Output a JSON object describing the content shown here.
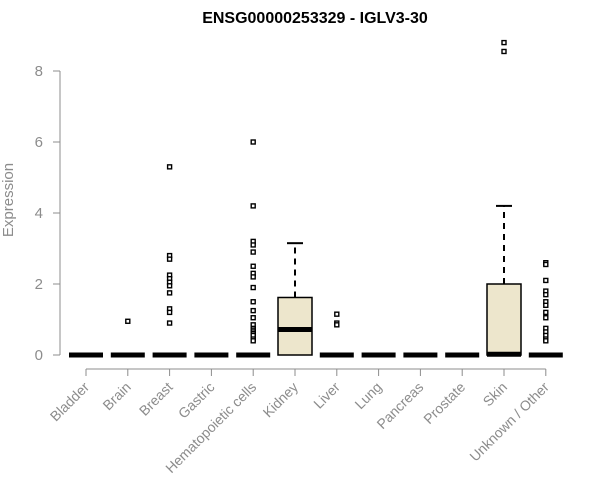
{
  "chart_data": {
    "type": "box",
    "title": "ENSG00000253329 - IGLV3-30",
    "xlabel": "",
    "ylabel": "Expression",
    "ylim": [
      0,
      9
    ],
    "yticks": [
      0,
      2,
      4,
      6,
      8
    ],
    "grid": false,
    "legend": "none",
    "colors": {
      "box_fill": "#ede6cc",
      "axis": "#8c8c8c",
      "title": "#000000"
    },
    "categories": [
      "Bladder",
      "Brain",
      "Breast",
      "Gastric",
      "Hematopoietic cells",
      "Kidney",
      "Liver",
      "Lung",
      "Pancreas",
      "Prostate",
      "Skin",
      "Unknown / Other"
    ],
    "boxes": [
      {
        "category": "Bladder",
        "q1": 0,
        "median": 0,
        "q3": 0,
        "whisker_low": 0,
        "whisker_high": 0,
        "outliers": []
      },
      {
        "category": "Brain",
        "q1": 0,
        "median": 0,
        "q3": 0,
        "whisker_low": 0,
        "whisker_high": 0,
        "outliers": [
          0.95
        ]
      },
      {
        "category": "Breast",
        "q1": 0,
        "median": 0,
        "q3": 0,
        "whisker_low": 0,
        "whisker_high": 0,
        "outliers": [
          5.3,
          2.8,
          2.7,
          2.25,
          2.15,
          2.05,
          1.95,
          1.75,
          1.3,
          1.2,
          0.9
        ]
      },
      {
        "category": "Gastric",
        "q1": 0,
        "median": 0,
        "q3": 0,
        "whisker_low": 0,
        "whisker_high": 0,
        "outliers": []
      },
      {
        "category": "Hematopoietic cells",
        "q1": 0,
        "median": 0,
        "q3": 0,
        "whisker_low": 0,
        "whisker_high": 0,
        "outliers": [
          6.0,
          4.2,
          3.2,
          3.1,
          2.9,
          2.5,
          2.3,
          2.2,
          1.9,
          1.5,
          1.25,
          1.05,
          0.85,
          0.75,
          0.7,
          0.65,
          0.6,
          0.55,
          0.45,
          0.4
        ]
      },
      {
        "category": "Kidney",
        "q1": 0,
        "median": 0.72,
        "q3": 1.62,
        "whisker_low": 0,
        "whisker_high": 3.15,
        "outliers": []
      },
      {
        "category": "Liver",
        "q1": 0,
        "median": 0,
        "q3": 0,
        "whisker_low": 0,
        "whisker_high": 0,
        "outliers": [
          1.15,
          0.9,
          0.85
        ]
      },
      {
        "category": "Lung",
        "q1": 0,
        "median": 0,
        "q3": 0,
        "whisker_low": 0,
        "whisker_high": 0,
        "outliers": []
      },
      {
        "category": "Pancreas",
        "q1": 0,
        "median": 0,
        "q3": 0,
        "whisker_low": 0,
        "whisker_high": 0,
        "outliers": []
      },
      {
        "category": "Prostate",
        "q1": 0,
        "median": 0,
        "q3": 0,
        "whisker_low": 0,
        "whisker_high": 0,
        "outliers": []
      },
      {
        "category": "Skin",
        "q1": 0,
        "median": 0.02,
        "q3": 2.0,
        "whisker_low": 0,
        "whisker_high": 4.2,
        "outliers": [
          8.8,
          8.55
        ]
      },
      {
        "category": "Unknown / Other",
        "q1": 0,
        "median": 0,
        "q3": 0,
        "whisker_low": 0,
        "whisker_high": 0,
        "outliers": [
          2.6,
          2.55,
          2.1,
          1.8,
          1.7,
          1.5,
          1.4,
          1.2,
          1.05,
          0.75,
          0.65,
          0.55,
          0.45,
          0.4
        ]
      }
    ]
  }
}
